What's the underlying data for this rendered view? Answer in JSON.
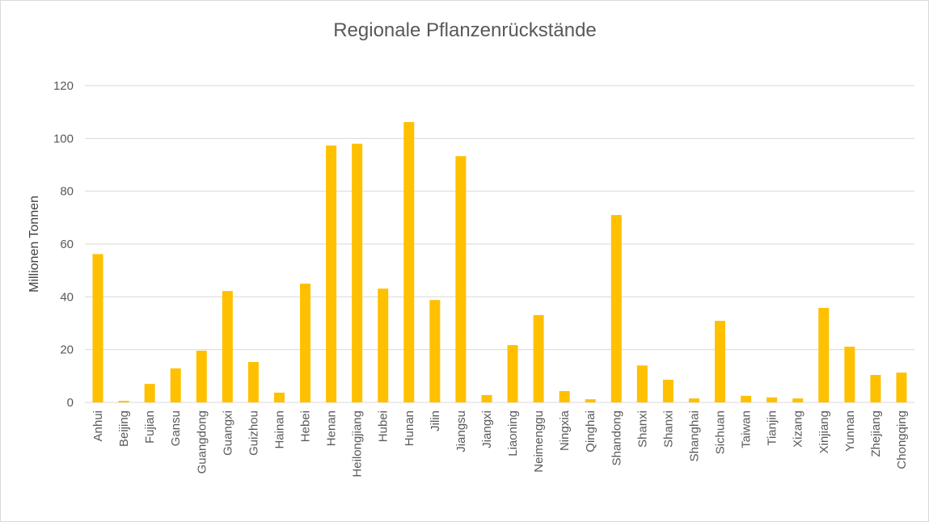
{
  "chart_data": {
    "type": "bar",
    "title": "Regionale Pflanzenrückstände",
    "xlabel": "",
    "ylabel": "Millionen Tonnen",
    "ylim": [
      0,
      120
    ],
    "yticks": [
      "0",
      "20",
      "40",
      "60",
      "80",
      "100",
      "120"
    ],
    "grid": true,
    "legend": "none",
    "colors": {
      "bar": "#FFC000",
      "grid": "#d9d9d9",
      "text": "#595959"
    },
    "categories": [
      "Anhui",
      "Beijing",
      "Fujian",
      "Gansu",
      "Guangdong",
      "Guangxi",
      "Guizhou",
      "Hainan",
      "Hebei",
      "Henan",
      "Heilongjiang",
      "Hubei",
      "Hunan",
      "Jilin",
      "Jiangsu",
      "Jiangxi",
      "Liaoning",
      "Neimenggu",
      "Ningxia",
      "Qinghai",
      "Shandong",
      "Shanxi",
      "Shanxi",
      "Shanghai",
      "Sichuan",
      "Taiwan",
      "Tianjin",
      "Xizang",
      "Xinjiang",
      "Yunnan",
      "Zhejiang",
      "Chongqing"
    ],
    "values": [
      56.2,
      0.6,
      7.0,
      12.9,
      19.6,
      42.2,
      15.3,
      3.7,
      45.0,
      97.3,
      98.0,
      43.1,
      106.2,
      38.8,
      93.3,
      2.8,
      21.7,
      33.1,
      4.3,
      1.2,
      71.0,
      14.0,
      8.6,
      1.5,
      30.9,
      2.5,
      1.9,
      1.5,
      35.8,
      21.1,
      10.4,
      11.3
    ]
  }
}
